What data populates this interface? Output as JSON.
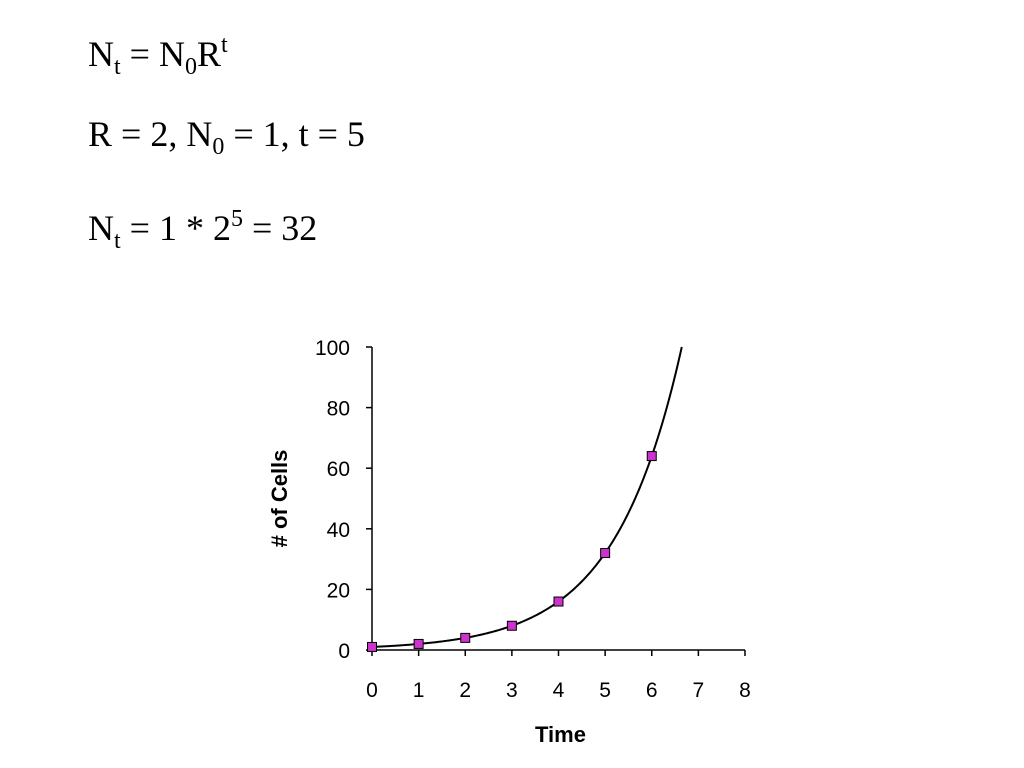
{
  "formulas": {
    "line1": {
      "lhs_base": "N",
      "lhs_sub": "t",
      "eq": " = ",
      "base": "N",
      "sub": "0",
      "r": "R",
      "sup": "t"
    },
    "line2": {
      "p1": "R = 2, N",
      "sub": "0",
      "p2": " = 1, t = 5"
    },
    "line3": {
      "lhs_base": "N",
      "lhs_sub": "t",
      "p1": " = 1 * 2",
      "sup": "5",
      "p2": " = 32"
    }
  },
  "colors": {
    "marker_fill": "#cc33cc",
    "marker_stroke": "#000000",
    "curve": "#000000",
    "axis": "#000000"
  },
  "chart_data": {
    "type": "scatter",
    "title": "",
    "xlabel": "Time",
    "ylabel": "# of Cells",
    "xlim": [
      0,
      8
    ],
    "ylim": [
      0,
      100
    ],
    "xticks": [
      0,
      1,
      2,
      3,
      4,
      5,
      6,
      7,
      8
    ],
    "yticks": [
      0,
      20,
      40,
      60,
      80,
      100
    ],
    "grid": false,
    "legend": "none",
    "series": [
      {
        "x": [
          0,
          1,
          2,
          3,
          4,
          5,
          6
        ],
        "y": [
          1,
          2,
          4,
          8,
          16,
          32,
          64
        ],
        "marker": "square"
      }
    ],
    "trendline": {
      "type": "exponential",
      "a": 1,
      "base": 2
    }
  }
}
